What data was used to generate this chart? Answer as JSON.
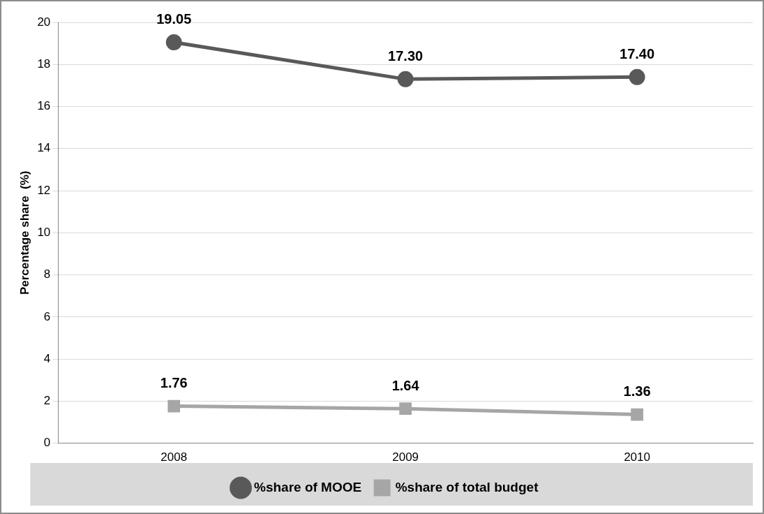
{
  "chart_data": {
    "type": "line",
    "ylabel": "Percentage share  (%)",
    "categories": [
      "2008",
      "2009",
      "2010"
    ],
    "series": [
      {
        "name": "%share of MOOE",
        "color": "#595959",
        "values": [
          19.05,
          17.3,
          17.4
        ],
        "marker": "circle",
        "value_labels": [
          "19.05",
          "17.30",
          "17.40"
        ]
      },
      {
        "name": "%share of total budget",
        "color": "#a6a6a6",
        "values": [
          1.76,
          1.64,
          1.36
        ],
        "marker": "square",
        "value_labels": [
          "1.76",
          "1.64",
          "1.36"
        ]
      }
    ],
    "ylim": [
      0,
      20
    ],
    "yticks": [
      0,
      2,
      4,
      6,
      8,
      10,
      12,
      14,
      16,
      18,
      20
    ],
    "grid": "y",
    "legend": "bottom"
  }
}
